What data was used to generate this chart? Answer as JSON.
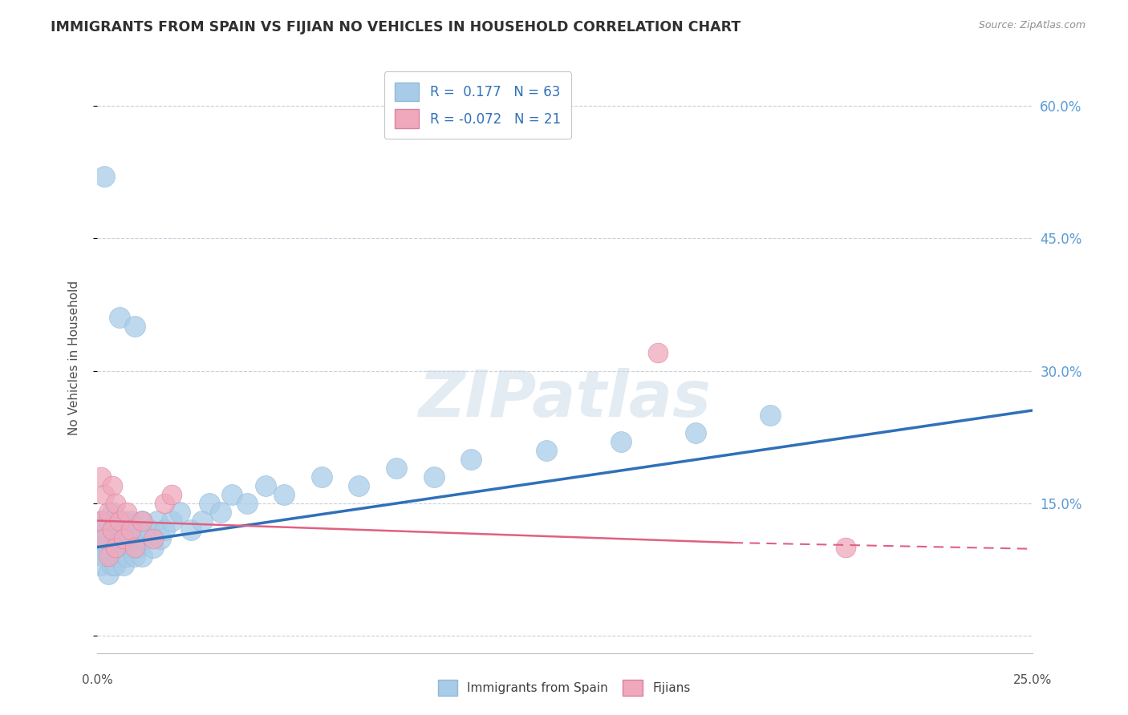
{
  "title": "IMMIGRANTS FROM SPAIN VS FIJIAN NO VEHICLES IN HOUSEHOLD CORRELATION CHART",
  "source": "Source: ZipAtlas.com",
  "ylabel": "No Vehicles in Household",
  "y_ticks": [
    0.0,
    0.15,
    0.3,
    0.45,
    0.6
  ],
  "xlim": [
    0.0,
    0.25
  ],
  "ylim": [
    -0.02,
    0.65
  ],
  "blue_color": "#A8CCE8",
  "pink_color": "#F0A8BC",
  "blue_line_color": "#3070B8",
  "pink_line_color": "#E06080",
  "watermark": "ZIPatlas",
  "blue_line_x0": 0.0,
  "blue_line_y0": 0.1,
  "blue_line_x1": 0.25,
  "blue_line_y1": 0.255,
  "pink_line_solid_x0": 0.0,
  "pink_line_solid_y0": 0.13,
  "pink_line_solid_x1": 0.17,
  "pink_line_solid_y1": 0.105,
  "pink_line_dash_x0": 0.17,
  "pink_line_dash_y0": 0.105,
  "pink_line_dash_x1": 0.25,
  "pink_line_dash_y1": 0.098,
  "spain_x": [
    0.001,
    0.001,
    0.001,
    0.002,
    0.002,
    0.002,
    0.003,
    0.003,
    0.003,
    0.003,
    0.004,
    0.004,
    0.004,
    0.004,
    0.005,
    0.005,
    0.005,
    0.005,
    0.006,
    0.006,
    0.006,
    0.007,
    0.007,
    0.007,
    0.008,
    0.008,
    0.008,
    0.009,
    0.009,
    0.01,
    0.01,
    0.011,
    0.011,
    0.012,
    0.012,
    0.013,
    0.014,
    0.015,
    0.016,
    0.017,
    0.018,
    0.02,
    0.022,
    0.025,
    0.028,
    0.03,
    0.033,
    0.036,
    0.04,
    0.045,
    0.05,
    0.06,
    0.07,
    0.08,
    0.09,
    0.1,
    0.12,
    0.14,
    0.16,
    0.002,
    0.006,
    0.01,
    0.18
  ],
  "spain_y": [
    0.11,
    0.13,
    0.08,
    0.1,
    0.09,
    0.12,
    0.1,
    0.13,
    0.07,
    0.11,
    0.09,
    0.12,
    0.08,
    0.14,
    0.11,
    0.1,
    0.13,
    0.08,
    0.12,
    0.09,
    0.11,
    0.1,
    0.13,
    0.08,
    0.12,
    0.09,
    0.11,
    0.1,
    0.13,
    0.11,
    0.09,
    0.12,
    0.1,
    0.13,
    0.09,
    0.11,
    0.12,
    0.1,
    0.13,
    0.11,
    0.12,
    0.13,
    0.14,
    0.12,
    0.13,
    0.15,
    0.14,
    0.16,
    0.15,
    0.17,
    0.16,
    0.18,
    0.17,
    0.19,
    0.18,
    0.2,
    0.21,
    0.22,
    0.23,
    0.52,
    0.36,
    0.35,
    0.25
  ],
  "fijian_x": [
    0.001,
    0.001,
    0.002,
    0.002,
    0.003,
    0.003,
    0.004,
    0.004,
    0.005,
    0.005,
    0.006,
    0.007,
    0.008,
    0.009,
    0.01,
    0.012,
    0.015,
    0.018,
    0.15,
    0.2,
    0.02
  ],
  "fijian_y": [
    0.18,
    0.13,
    0.16,
    0.11,
    0.14,
    0.09,
    0.17,
    0.12,
    0.15,
    0.1,
    0.13,
    0.11,
    0.14,
    0.12,
    0.1,
    0.13,
    0.11,
    0.15,
    0.32,
    0.1,
    0.16
  ]
}
